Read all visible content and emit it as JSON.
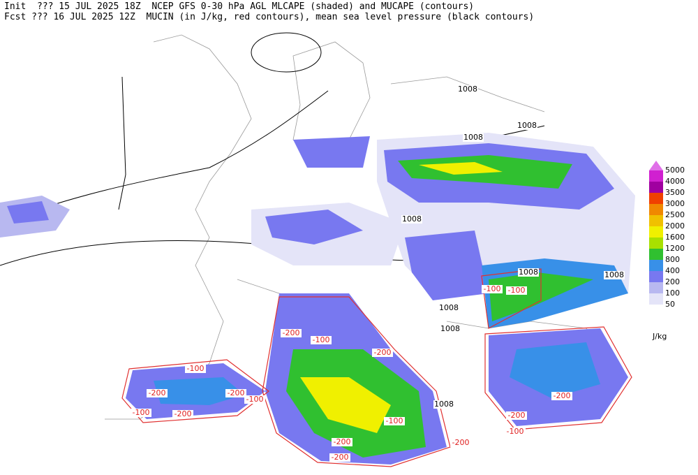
{
  "header": {
    "line1": "Init  ??? 15 JUL 2025 18Z  NCEP GFS 0-30 hPa AGL MLCAPE (shaded) and MUCAPE (contours)",
    "line2": "Fcst ??? 16 JUL 2025 12Z  MUCIN (in J/kg, red contours), mean sea level pressure (black contours)"
  },
  "legend": {
    "unit": "J/kg",
    "levels": [
      {
        "value": 5000,
        "color": "#e070e8"
      },
      {
        "value": 4000,
        "color": "#d020d0"
      },
      {
        "value": 3500,
        "color": "#a000a0"
      },
      {
        "value": 3000,
        "color": "#f04000"
      },
      {
        "value": 2500,
        "color": "#f08800"
      },
      {
        "value": 2000,
        "color": "#f0c000"
      },
      {
        "value": 1600,
        "color": "#f0f000"
      },
      {
        "value": 1200,
        "color": "#a8e000"
      },
      {
        "value": 800,
        "color": "#30c030"
      },
      {
        "value": 400,
        "color": "#3890e8"
      },
      {
        "value": 200,
        "color": "#7878f0"
      },
      {
        "value": 100,
        "color": "#b8b8f0"
      },
      {
        "value": 50,
        "color": "#e4e4f8"
      }
    ]
  },
  "pressure_labels": [
    "1008",
    "1008",
    "1008",
    "1008",
    "1008",
    "1008",
    "1008",
    "1008",
    "1008"
  ],
  "cin_labels": [
    "-100",
    "-100",
    "-100",
    "-100",
    "-100",
    "-100",
    "-100",
    "-100",
    "-200",
    "-200",
    "-200",
    "-200",
    "-200",
    "-200",
    "-200",
    "-200",
    "-200",
    "-200"
  ]
}
